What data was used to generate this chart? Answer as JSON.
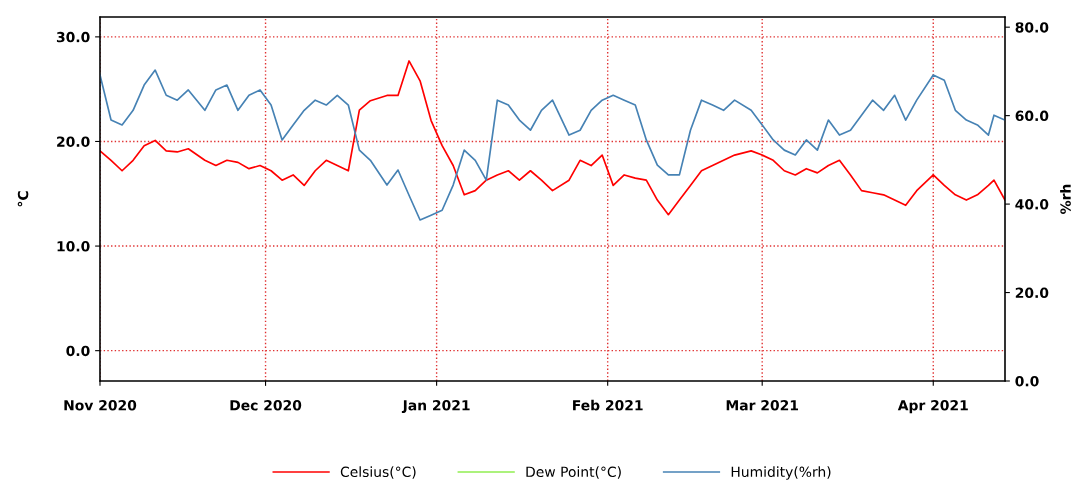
{
  "chart_data": {
    "type": "line",
    "ylabel": "°C",
    "y2label": "%rh",
    "grid": true,
    "legend": "bottom",
    "marker": "none",
    "line_style": "solid",
    "x": [
      "2020-11-01",
      "2020-11-03",
      "2020-11-05",
      "2020-11-07",
      "2020-11-09",
      "2020-11-11",
      "2020-11-13",
      "2020-11-15",
      "2020-11-17",
      "2020-11-20",
      "2020-11-22",
      "2020-11-24",
      "2020-11-26",
      "2020-11-28",
      "2020-11-30",
      "2020-12-02",
      "2020-12-04",
      "2020-12-06",
      "2020-12-08",
      "2020-12-10",
      "2020-12-12",
      "2020-12-14",
      "2020-12-16",
      "2020-12-18",
      "2020-12-20",
      "2020-12-23",
      "2020-12-25",
      "2020-12-27",
      "2020-12-29",
      "2020-12-31",
      "2021-01-02",
      "2021-01-04",
      "2021-01-06",
      "2021-01-08",
      "2021-01-10",
      "2021-01-12",
      "2021-01-14",
      "2021-01-16",
      "2021-01-18",
      "2021-01-20",
      "2021-01-22",
      "2021-01-25",
      "2021-01-27",
      "2021-01-29",
      "2021-01-31",
      "2021-02-02",
      "2021-02-04",
      "2021-02-06",
      "2021-02-08",
      "2021-02-10",
      "2021-02-12",
      "2021-02-14",
      "2021-02-16",
      "2021-02-18",
      "2021-02-20",
      "2021-02-22",
      "2021-02-24",
      "2021-02-27",
      "2021-03-01",
      "2021-03-03",
      "2021-03-05",
      "2021-03-07",
      "2021-03-09",
      "2021-03-11",
      "2021-03-13",
      "2021-03-15",
      "2021-03-17",
      "2021-03-19",
      "2021-03-21",
      "2021-03-23",
      "2021-03-25",
      "2021-03-27",
      "2021-03-29",
      "2021-04-01",
      "2021-04-03",
      "2021-04-05",
      "2021-04-07",
      "2021-04-09",
      "2021-04-11",
      "2021-04-12",
      "2021-04-14"
    ],
    "xlim": [
      "2020-11-01",
      "2021-04-14"
    ],
    "xticks": [
      {
        "value": "2020-11-01",
        "label": "Nov 2020"
      },
      {
        "value": "2020-12-01",
        "label": "Dec 2020"
      },
      {
        "value": "2021-01-01",
        "label": "Jan 2021"
      },
      {
        "value": "2021-02-01",
        "label": "Feb 2021"
      },
      {
        "value": "2021-03-01",
        "label": "Mar 2021"
      },
      {
        "value": "2021-04-01",
        "label": "Apr 2021"
      }
    ],
    "ylim": [
      -2.9,
      31.9
    ],
    "yticks": [
      {
        "value": 0,
        "label": "0.0"
      },
      {
        "value": 10,
        "label": "10.0"
      },
      {
        "value": 20,
        "label": "20.0"
      },
      {
        "value": 30,
        "label": "30.0"
      }
    ],
    "y2lim": [
      0,
      82.3
    ],
    "y2ticks": [
      {
        "value": 0,
        "label": "0.0"
      },
      {
        "value": 20,
        "label": "20.0"
      },
      {
        "value": 40,
        "label": "40.0"
      },
      {
        "value": 60,
        "label": "60.0"
      },
      {
        "value": 80,
        "label": "80.0"
      }
    ],
    "series": [
      {
        "name": "Celsius(°C)",
        "color": "#ff0000",
        "values": [
          19.1,
          18.2,
          17.2,
          18.2,
          19.6,
          20.1,
          19.1,
          19.0,
          19.3,
          18.2,
          17.7,
          18.2,
          18.0,
          17.4,
          17.7,
          17.2,
          16.3,
          16.8,
          15.8,
          17.2,
          18.2,
          17.7,
          17.2,
          23.0,
          23.9,
          24.4,
          24.4,
          27.7,
          25.8,
          22.0,
          19.6,
          17.7,
          14.9,
          15.3,
          16.3,
          16.8,
          17.2,
          16.3,
          17.2,
          16.3,
          15.3,
          16.3,
          18.2,
          17.7,
          18.7,
          15.8,
          16.8,
          16.5,
          16.3,
          14.4,
          13.0,
          14.4,
          15.8,
          17.2,
          17.7,
          18.2,
          18.7,
          19.1,
          18.7,
          18.2,
          17.2,
          16.8,
          17.4,
          17.0,
          17.7,
          18.2,
          16.8,
          15.3,
          15.1,
          14.9,
          14.4,
          13.9,
          15.3,
          16.8,
          15.8,
          14.9,
          14.4,
          14.9,
          15.8,
          16.3,
          14.4
        ]
      },
      {
        "name": "Dew Point(°C)",
        "color": "#90ee50",
        "values": [
          null,
          null,
          null,
          null,
          null,
          null,
          null,
          null,
          null,
          null,
          null,
          null,
          null,
          null,
          null,
          null,
          null,
          null,
          null,
          null,
          null,
          null,
          null,
          null,
          null,
          null,
          null,
          null,
          null,
          null,
          null,
          null,
          null,
          null,
          null,
          null,
          null,
          null,
          null,
          null,
          null,
          null,
          null,
          null,
          null,
          null,
          null,
          null,
          null,
          null,
          null,
          null,
          null,
          null,
          null,
          null,
          null,
          null,
          null,
          null,
          null,
          null,
          null,
          null,
          null,
          null,
          null,
          null,
          null,
          null,
          null,
          null,
          null,
          null,
          null,
          null,
          null,
          null,
          null,
          null,
          null
        ]
      },
      {
        "name": "Humidity(%rh)",
        "color": "#4682b4",
        "axis": "y2",
        "values": [
          69.2,
          59.0,
          57.9,
          61.2,
          66.9,
          70.3,
          64.6,
          63.5,
          65.8,
          61.2,
          65.8,
          66.9,
          61.2,
          64.6,
          65.8,
          62.4,
          54.5,
          57.9,
          61.2,
          63.5,
          62.4,
          64.6,
          62.4,
          52.2,
          49.9,
          44.3,
          47.7,
          42.0,
          36.4,
          37.5,
          38.6,
          44.3,
          52.2,
          49.9,
          45.4,
          63.5,
          62.4,
          59.0,
          56.7,
          61.2,
          63.5,
          55.6,
          56.7,
          61.2,
          63.5,
          64.6,
          63.5,
          62.4,
          54.5,
          48.8,
          46.6,
          46.6,
          56.7,
          63.5,
          62.4,
          61.2,
          63.5,
          61.2,
          57.9,
          54.5,
          52.2,
          51.1,
          54.5,
          52.2,
          59.0,
          55.6,
          56.7,
          60.1,
          63.5,
          61.2,
          64.6,
          59.0,
          63.5,
          69.2,
          68.0,
          61.2,
          59.0,
          57.9,
          55.6,
          60.1,
          59.0
        ]
      }
    ]
  }
}
